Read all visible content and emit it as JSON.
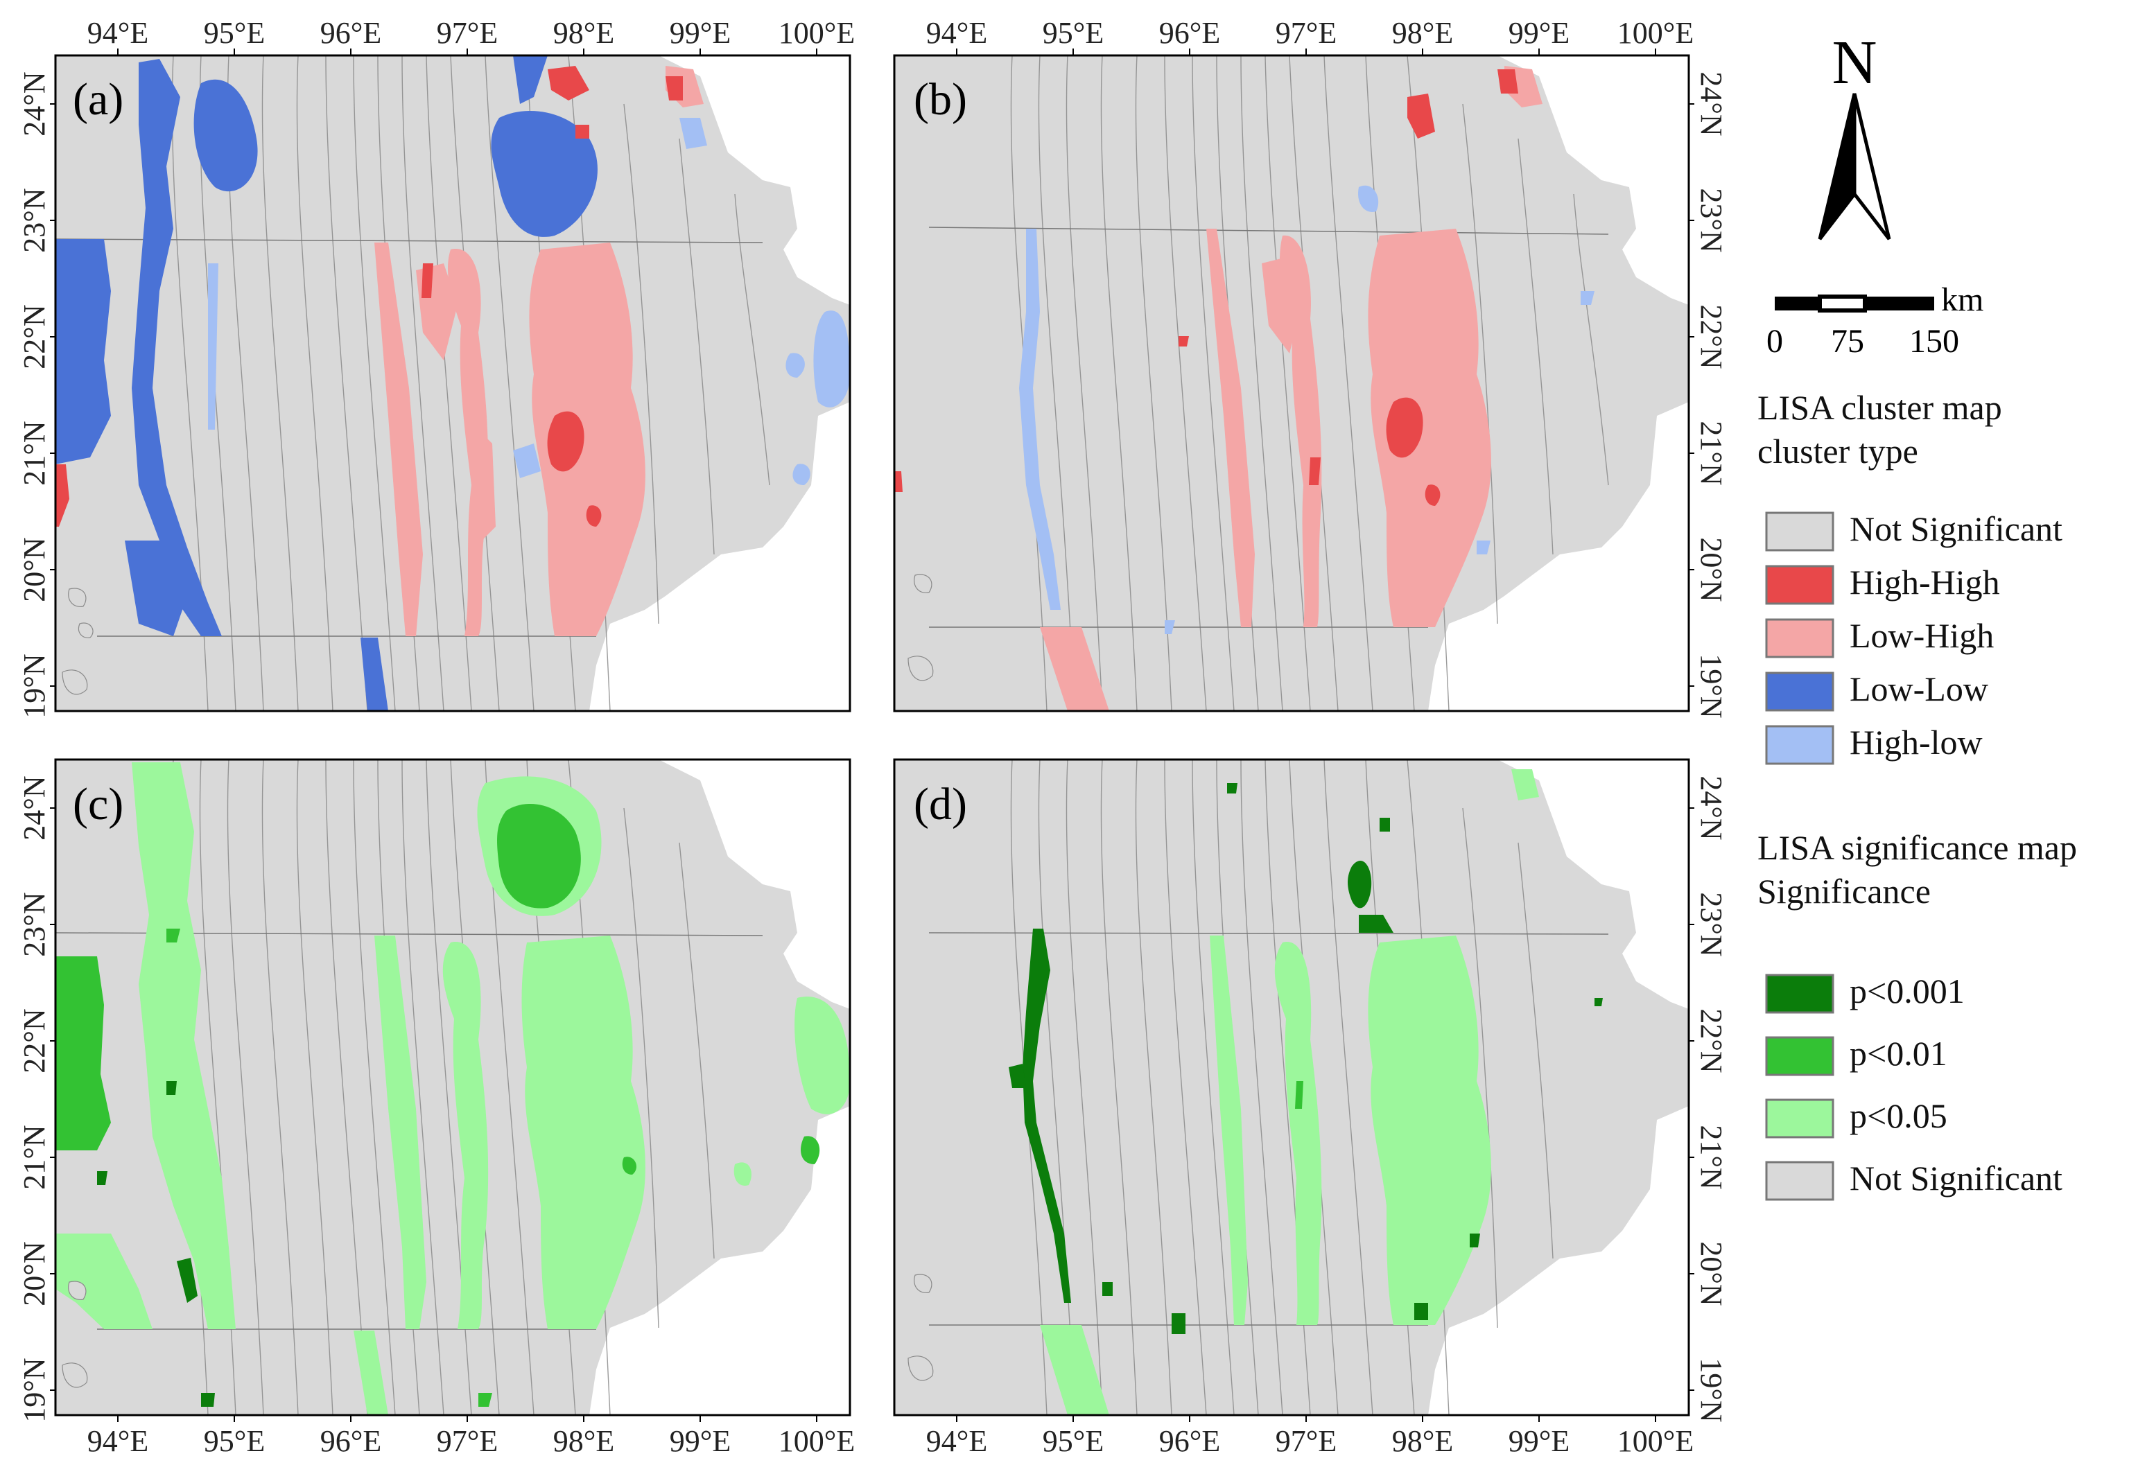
{
  "panels": [
    {
      "label": "(a)",
      "kind": "cluster"
    },
    {
      "label": "(b)",
      "kind": "cluster"
    },
    {
      "label": "(c)",
      "kind": "significance"
    },
    {
      "label": "(d)",
      "kind": "significance"
    }
  ],
  "axes": {
    "lon_labels": [
      "94°E",
      "95°E",
      "96°E",
      "97°E",
      "98°E",
      "99°E",
      "100°E"
    ],
    "lat_labels": [
      "24°N",
      "23°N",
      "22°N",
      "21°N",
      "20°N",
      "19°N"
    ]
  },
  "north_arrow": {
    "letter": "N"
  },
  "scale_bar": {
    "unit": "km",
    "ticks": [
      "0",
      "75",
      "150"
    ]
  },
  "legend_cluster": {
    "title_line1": "LISA cluster map",
    "title_line2": "cluster type",
    "items": [
      {
        "label": "Not Significant",
        "color": "#d9d9d9"
      },
      {
        "label": "High-High",
        "color": "#e8484a"
      },
      {
        "label": "Low-High",
        "color": "#f4a6a6"
      },
      {
        "label": "Low-Low",
        "color": "#4a72d6"
      },
      {
        "label": "High-low",
        "color": "#a3bff4"
      }
    ]
  },
  "legend_significance": {
    "title_line1": "LISA significance map",
    "title_line2": "Significance",
    "items": [
      {
        "label": "p<0.001",
        "color": "#0b7d0b"
      },
      {
        "label": "p<0.01",
        "color": "#33c233"
      },
      {
        "label": "p<0.05",
        "color": "#9cf79c"
      },
      {
        "label": "Not Significant",
        "color": "#d9d9d9"
      }
    ]
  },
  "colors": {
    "land": "#d9d9d9",
    "contour": "#8a8a8a",
    "frame": "#000000"
  }
}
